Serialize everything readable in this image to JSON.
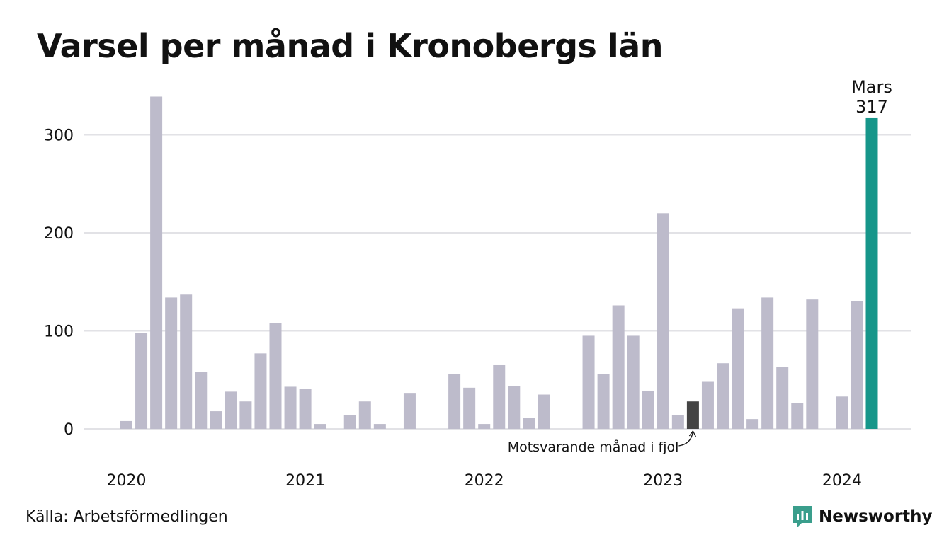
{
  "title": "Varsel per månad i Kronobergs län",
  "source": "Källa: Arbetsförmedlingen",
  "brand": {
    "name": "Newsworthy",
    "color": "#3a9e8c"
  },
  "colors": {
    "bar": "#bdbbcb",
    "highlight_prev": "#444444",
    "highlight_current": "#16968a",
    "grid": "#e2e2e6"
  },
  "chart_data": {
    "type": "bar",
    "x": [
      "2020-01",
      "2020-02",
      "2020-03",
      "2020-04",
      "2020-05",
      "2020-06",
      "2020-07",
      "2020-08",
      "2020-09",
      "2020-10",
      "2020-11",
      "2020-12",
      "2021-01",
      "2021-02",
      "2021-03",
      "2021-04",
      "2021-05",
      "2021-06",
      "2021-07",
      "2021-08",
      "2021-09",
      "2021-10",
      "2021-11",
      "2021-12",
      "2022-01",
      "2022-02",
      "2022-03",
      "2022-04",
      "2022-05",
      "2022-06",
      "2022-07",
      "2022-08",
      "2022-09",
      "2022-10",
      "2022-11",
      "2022-12",
      "2023-01",
      "2023-02",
      "2023-03",
      "2023-04",
      "2023-05",
      "2023-06",
      "2023-07",
      "2023-08",
      "2023-09",
      "2023-10",
      "2023-11",
      "2023-12",
      "2024-01",
      "2024-02",
      "2024-03"
    ],
    "values": [
      8,
      98,
      339,
      134,
      137,
      58,
      18,
      38,
      28,
      77,
      108,
      43,
      41,
      5,
      0,
      14,
      28,
      5,
      0,
      36,
      0,
      0,
      56,
      42,
      5,
      65,
      44,
      11,
      35,
      0,
      0,
      95,
      56,
      126,
      95,
      39,
      220,
      14,
      28,
      48,
      67,
      123,
      10,
      134,
      63,
      26,
      132,
      0,
      33,
      130,
      317
    ],
    "highlight_previous_index": 38,
    "highlight_current_index": 50,
    "ylim": [
      0,
      345
    ],
    "yticks": [
      0,
      100,
      200,
      300
    ],
    "xticks": [
      "2020",
      "2021",
      "2022",
      "2023",
      "2024"
    ],
    "grid": true,
    "annotations": {
      "current_month": "Mars",
      "current_value": "317",
      "previous_note": "Motsvarande månad i fjol"
    }
  }
}
